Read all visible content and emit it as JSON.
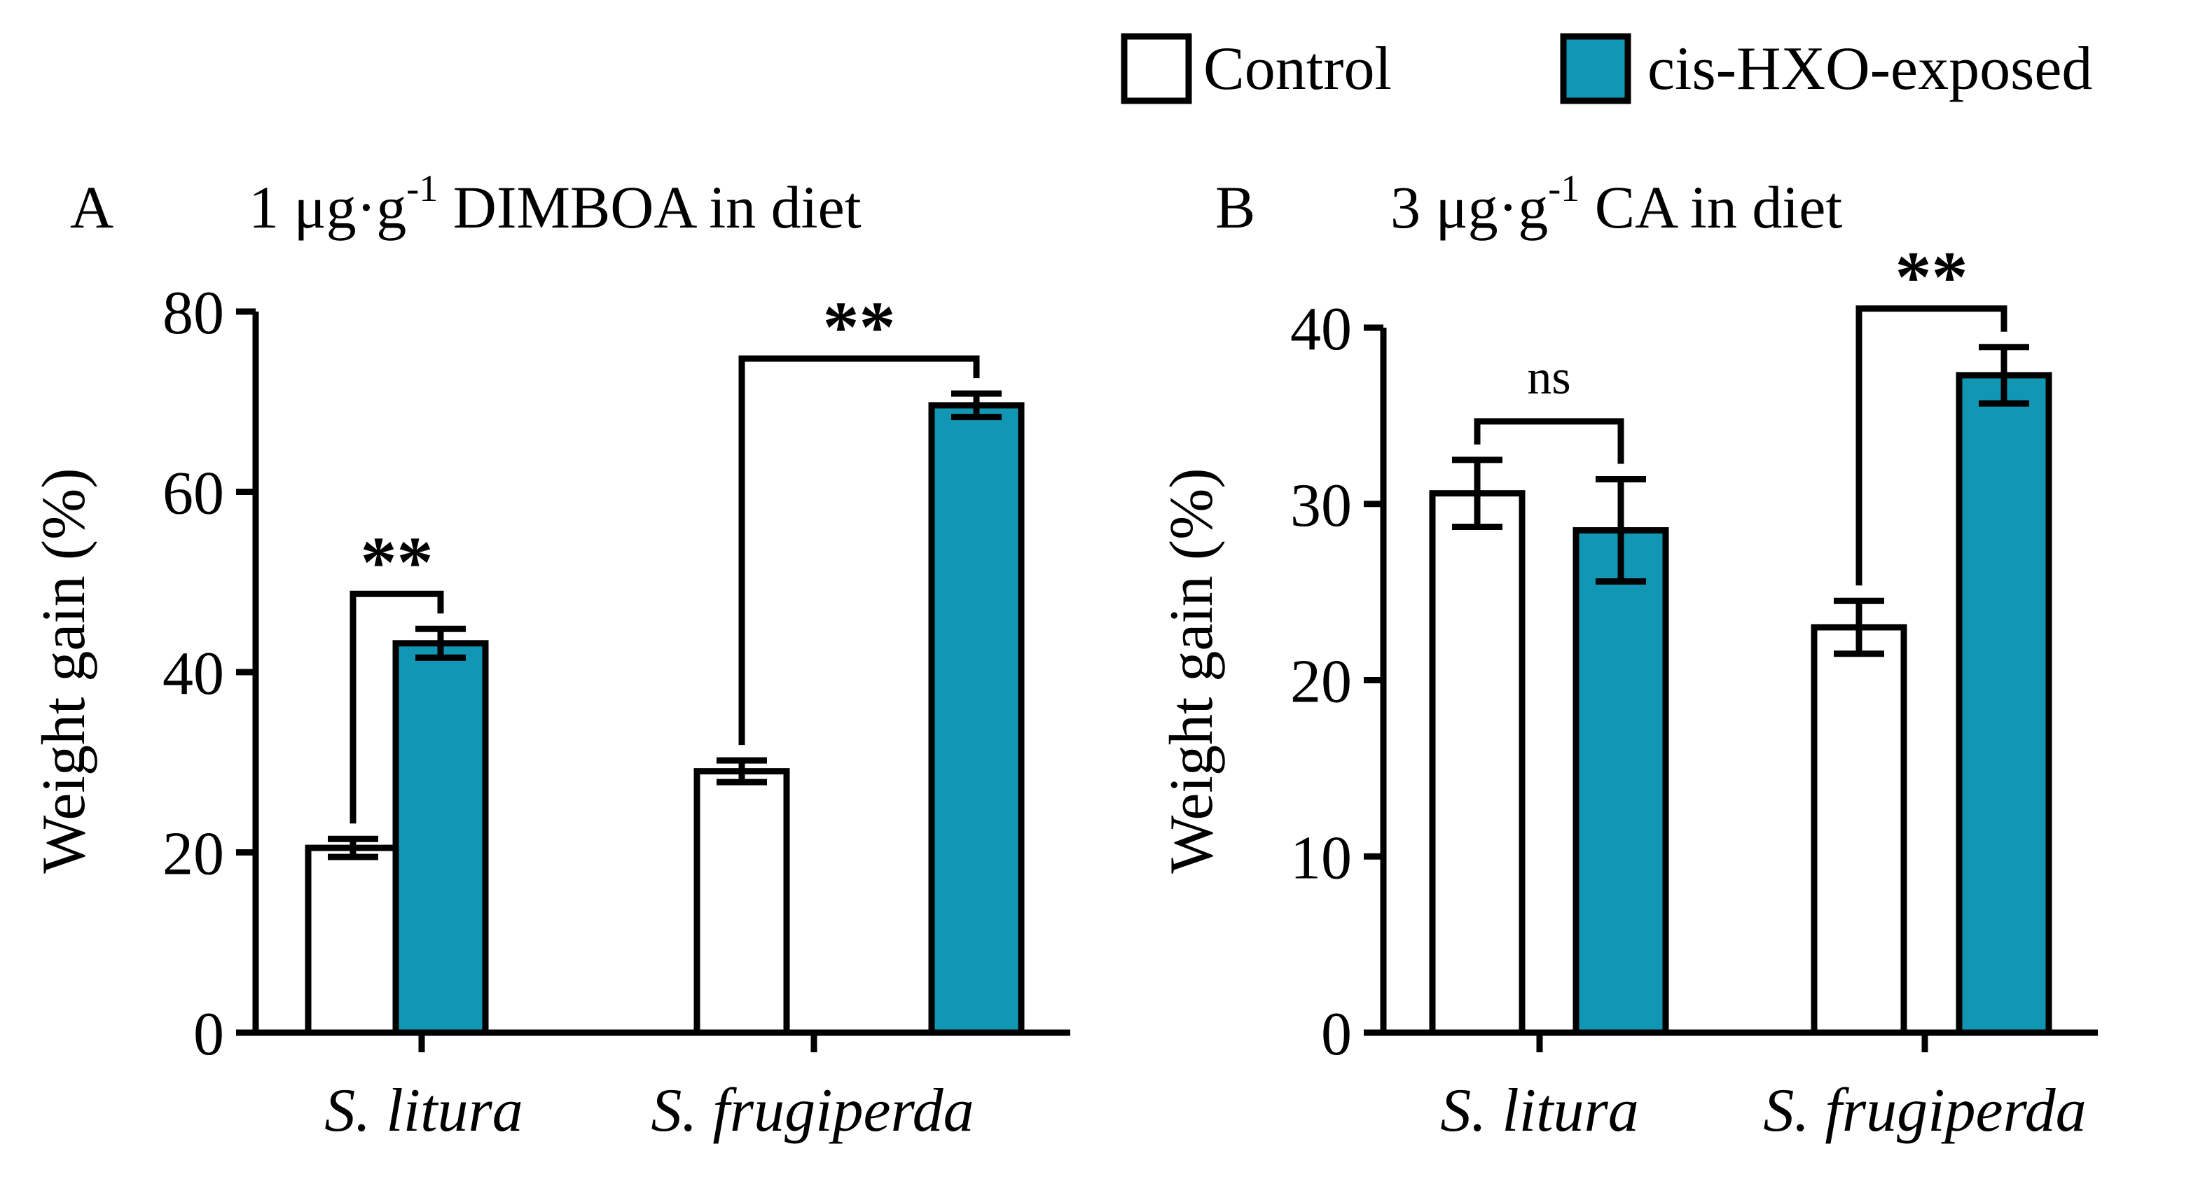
{
  "legend": {
    "control": "Control",
    "exposed": "cis-HXO-exposed"
  },
  "colors": {
    "control_fill": "#ffffff",
    "exposed_fill": "#1197b4",
    "stroke": "#000000"
  },
  "chart_data": [
    {
      "type": "bar",
      "panel": "A",
      "title_pre": "1 μg·g",
      "title_sup": "-1",
      "title_post": " DIMBOA in diet",
      "ylabel": "Weight gain (%)",
      "ylim": [
        0,
        80
      ],
      "yticks": [
        0,
        20,
        40,
        60,
        80
      ],
      "categories": [
        "S. litura",
        "S. frugiperda"
      ],
      "series": [
        {
          "name": "Control",
          "values": [
            20.5,
            29.0
          ],
          "errors": [
            1.0,
            1.2
          ]
        },
        {
          "name": "cis-HXO-exposed",
          "values": [
            43.2,
            69.6
          ],
          "errors": [
            1.6,
            1.3
          ]
        }
      ],
      "significance": [
        "**",
        "**"
      ]
    },
    {
      "type": "bar",
      "panel": "B",
      "title_pre": "3 μg·g",
      "title_sup": "-1",
      "title_post": " CA in diet",
      "ylabel": "Weight gain (%)",
      "ylim": [
        0,
        40
      ],
      "yticks": [
        0,
        10,
        20,
        30,
        40
      ],
      "categories": [
        "S. litura",
        "S. frugiperda"
      ],
      "series": [
        {
          "name": "Control",
          "values": [
            30.6,
            23.0
          ],
          "errors": [
            1.9,
            1.5
          ]
        },
        {
          "name": "cis-HXO-exposed",
          "values": [
            28.5,
            37.3
          ],
          "errors": [
            2.9,
            1.6
          ]
        }
      ],
      "significance": [
        "ns",
        "**"
      ]
    }
  ]
}
